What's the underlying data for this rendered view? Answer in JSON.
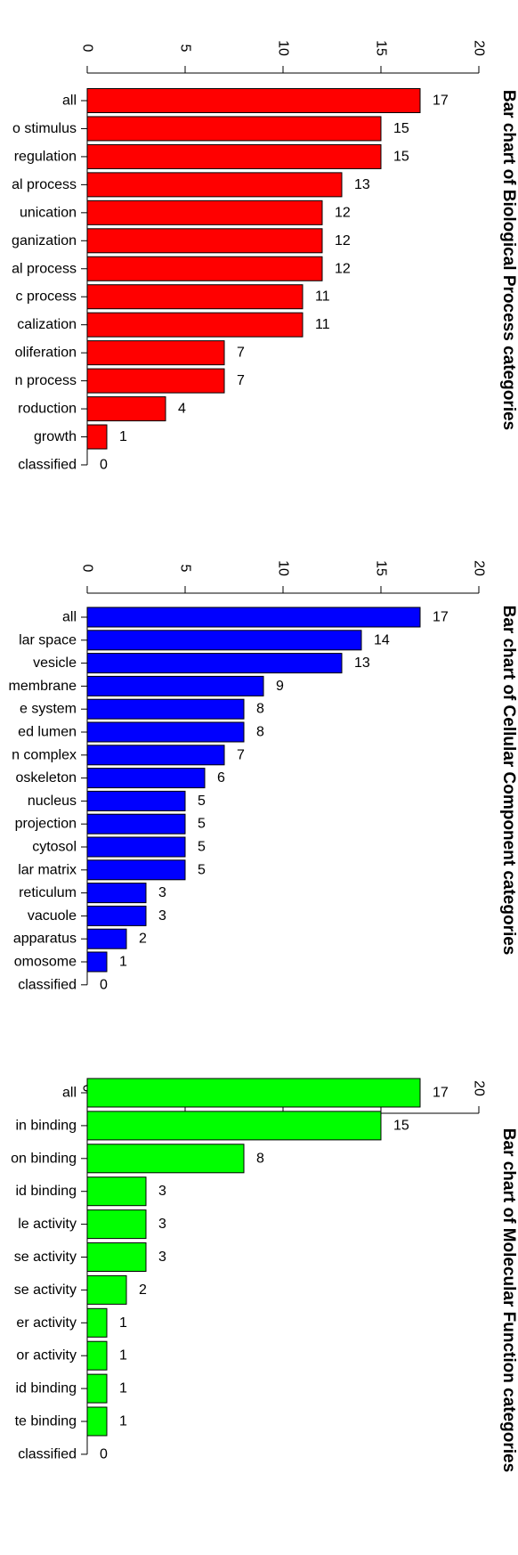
{
  "chart_data": [
    {
      "type": "bar",
      "title": "Bar chart of Biological Process categories",
      "color": "#ff0000",
      "xlim": [
        0,
        20
      ],
      "ticks": [
        "0",
        "5",
        "10",
        "15",
        "20"
      ],
      "categories": [
        "all",
        "o stimulus",
        "regulation",
        "al process",
        "unication",
        "ganization",
        "al process",
        "c process",
        "calization",
        "oliferation",
        "n process",
        "roduction",
        "growth",
        "classified"
      ],
      "values": [
        17,
        15,
        15,
        13,
        12,
        12,
        12,
        11,
        11,
        7,
        7,
        4,
        1,
        0
      ]
    },
    {
      "type": "bar",
      "title": "Bar chart of Cellular Component categories",
      "color": "#0000ff",
      "xlim": [
        0,
        20
      ],
      "ticks": [
        "0",
        "5",
        "10",
        "15",
        "20"
      ],
      "categories": [
        "all",
        "lar space",
        "vesicle",
        "membrane",
        "e system",
        "ed lumen",
        "n complex",
        "oskeleton",
        "nucleus",
        "projection",
        "cytosol",
        "lar matrix",
        "reticulum",
        "vacuole",
        "apparatus",
        "omosome",
        "classified"
      ],
      "values": [
        17,
        14,
        13,
        9,
        8,
        8,
        7,
        6,
        5,
        5,
        5,
        5,
        3,
        3,
        2,
        1,
        0
      ]
    },
    {
      "type": "bar",
      "title": "Bar chart of Molecular Function categories",
      "color": "#00ff00",
      "xlim": [
        0,
        20
      ],
      "ticks": [
        "0",
        "5",
        "10",
        "15",
        "20"
      ],
      "categories": [
        "all",
        "in binding",
        "on binding",
        "id binding",
        "le activity",
        "se activity",
        "se activity",
        "er activity",
        "or activity",
        "id binding",
        "te binding",
        "classified"
      ],
      "values": [
        17,
        15,
        8,
        3,
        3,
        3,
        2,
        1,
        1,
        1,
        1,
        0
      ]
    }
  ]
}
